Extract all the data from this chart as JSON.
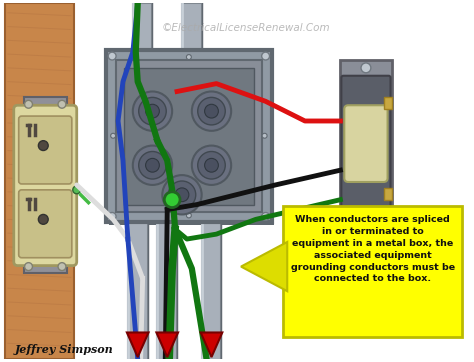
{
  "title": "©ElectricalLicenseRenewal.Com",
  "author": "Jeffrey Simpson",
  "annotation_text": "When conductors are spliced\nin or terminated to\nequipment in a metal box, the\nassociated equipment\ngrounding conductors must be\nconnected to the box.",
  "annotation_box_color": "#FFFF00",
  "annotation_box_edge": "#BBBB00",
  "annotation_arrow_color": "#DDDD00",
  "bg_color": "#FFFFFF",
  "wood_color": "#C8864A",
  "wood_dark": "#9A6030",
  "wood_grain": "#B07040",
  "metal_box_outer": "#909AA4",
  "metal_box_inner": "#7A8490",
  "metal_box_face": "#888E98",
  "metal_box_edge": "#606870",
  "conduit_color": "#A8B0BA",
  "conduit_edge": "#808890",
  "conduit_highlight": "#C8D0D8",
  "knockout_outer": "#686E78",
  "knockout_inner": "#585E68",
  "outlet_body": "#DDD8A0",
  "outlet_receptacle": "#C8C088",
  "outlet_slots": "#504840",
  "switch_plate": "#8A8E98",
  "switch_body": "#5A5E68",
  "switch_toggle": "#D8D4A0",
  "switch_screws": "#B0B8C0",
  "wire_red": "#DD1111",
  "wire_black": "#111111",
  "wire_white": "#DDDDDD",
  "wire_green": "#117711",
  "wire_blue": "#2244BB",
  "wire_green_bright": "#33CC33",
  "arrow_red": "#CC0000",
  "title_color": "#AAAAAA",
  "author_color": "#111111"
}
